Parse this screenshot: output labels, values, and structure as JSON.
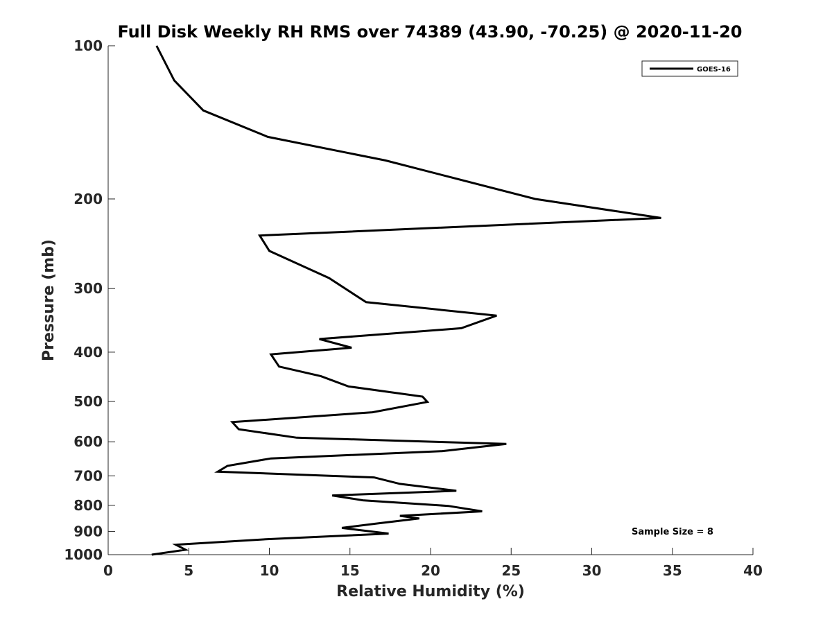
{
  "chart_data": {
    "type": "line",
    "title": "Full Disk Weekly RH RMS over 74389 (43.90, -70.25) @ 2020-11-20",
    "xlabel": "Relative Humidity (%)",
    "ylabel": "Pressure (mb)",
    "xlim": [
      0,
      40
    ],
    "ylim": [
      100,
      1000
    ],
    "y_scale": "log",
    "y_reversed": true,
    "x_ticks": [
      0,
      5,
      10,
      15,
      20,
      25,
      30,
      35,
      40
    ],
    "x_tick_labels": [
      "0",
      "5",
      "10",
      "15",
      "20",
      "25",
      "30",
      "35",
      "40"
    ],
    "y_ticks": [
      100,
      200,
      300,
      400,
      500,
      600,
      700,
      800,
      900,
      1000
    ],
    "y_tick_labels": [
      "100",
      "200",
      "300",
      "400",
      "500",
      "600",
      "700",
      "800",
      "900",
      "1000"
    ],
    "grid": false,
    "legend_position": "top-right",
    "annotation": "Sample Size = 8",
    "series": [
      {
        "name": "GOES-16",
        "color": "#000000",
        "x": [
          3.0,
          4.1,
          5.9,
          9.9,
          17.2,
          26.5,
          34.3,
          9.4,
          10.0,
          13.7,
          16.0,
          24.1,
          21.9,
          13.1,
          15.1,
          10.1,
          10.6,
          13.2,
          14.9,
          19.5,
          19.8,
          16.4,
          7.7,
          8.1,
          11.7,
          24.7,
          20.7,
          10.1,
          7.4,
          6.8,
          16.5,
          18.1,
          21.6,
          13.9,
          15.8,
          21.1,
          23.2,
          18.1,
          19.3,
          16.6,
          14.5,
          17.4,
          9.9,
          4.2,
          4.8,
          2.7
        ],
        "y": [
          100,
          117,
          134,
          151,
          168,
          200,
          218,
          236,
          253,
          286,
          319,
          339,
          359,
          377,
          392,
          404,
          427,
          446,
          467,
          489,
          501,
          525,
          549,
          567,
          589,
          606,
          626,
          647,
          669,
          687,
          705,
          726,
          749,
          765,
          782,
          802,
          822,
          839,
          849,
          869,
          886,
          909,
          932,
          956,
          978,
          1000
        ]
      }
    ]
  }
}
